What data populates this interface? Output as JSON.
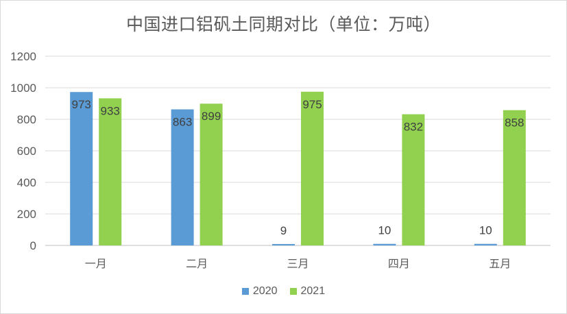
{
  "chart_data": {
    "type": "bar",
    "title": "中国进口铝矾土同期对比（单位：万吨）",
    "categories": [
      "一月",
      "二月",
      "三月",
      "四月",
      "五月"
    ],
    "series": [
      {
        "name": "2020",
        "color": "#5b9bd5",
        "values": [
          973,
          863,
          9,
          10,
          10
        ]
      },
      {
        "name": "2021",
        "color": "#92d050",
        "values": [
          933,
          899,
          975,
          832,
          858
        ]
      }
    ],
    "ylim": [
      0,
      1200
    ],
    "yticks": [
      0,
      200,
      400,
      600,
      800,
      1000,
      1200
    ],
    "grid": true,
    "legend_position": "bottom"
  }
}
